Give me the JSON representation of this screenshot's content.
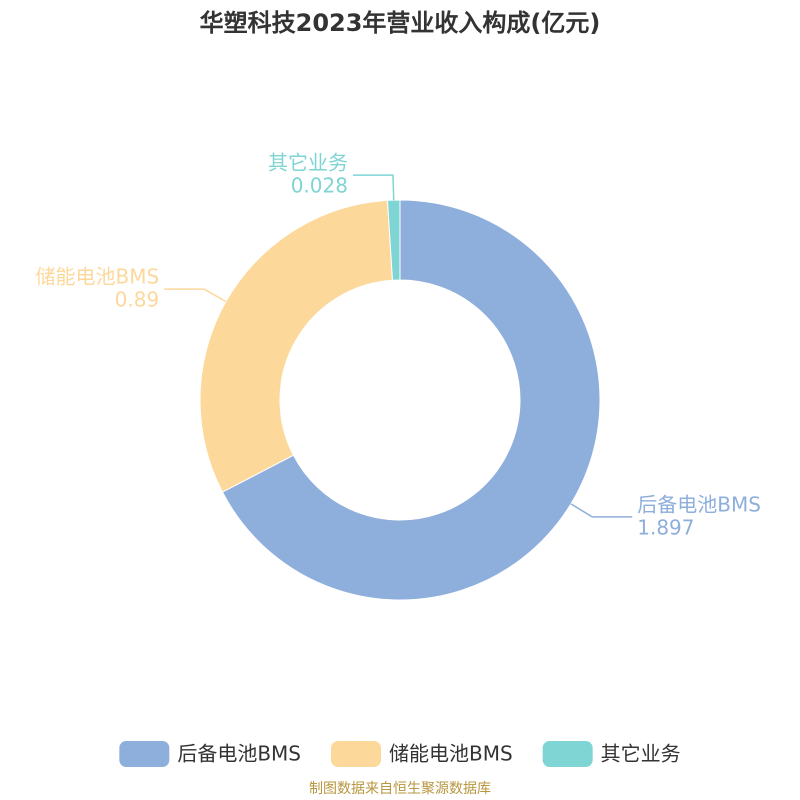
{
  "chart_data": {
    "type": "pie",
    "title": "华塑科技2023年营业收入构成(亿元)",
    "categories": [
      "后备电池BMS",
      "储能电池BMS",
      "其它业务"
    ],
    "values": [
      1.897,
      0.89,
      0.028
    ],
    "colors": [
      "#8eaedb",
      "#fdd89b",
      "#7fd4d4"
    ],
    "legend": "bottom",
    "source": "制图数据来自恒生聚源数据库"
  }
}
